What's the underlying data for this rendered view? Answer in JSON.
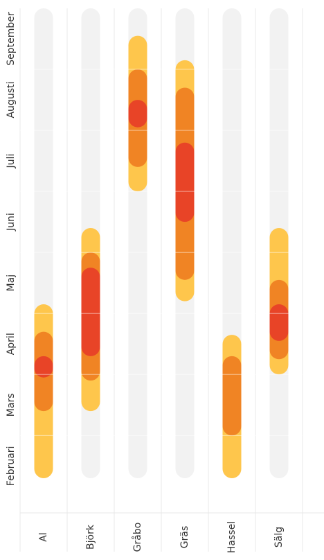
{
  "chart_data": {
    "type": "range-bar",
    "categories": [
      "Al",
      "Björk",
      "Gråbo",
      "Gräs",
      "Hassel",
      "Sälg"
    ],
    "ylim": [
      0.3,
      8
    ],
    "yticks": [
      {
        "value": 0.5,
        "label": "Februari"
      },
      {
        "value": 1.5,
        "label": "Mars"
      },
      {
        "value": 2.5,
        "label": "April"
      },
      {
        "value": 3.5,
        "label": "Maj"
      },
      {
        "value": 4.5,
        "label": "Juni"
      },
      {
        "value": 5.5,
        "label": "Juli"
      },
      {
        "value": 6.5,
        "label": "Augusti"
      },
      {
        "value": 7.5,
        "label": "September"
      }
    ],
    "grid_ticks": [
      1,
      2,
      3,
      4,
      5,
      6,
      7
    ],
    "track_color": "#f2f2f2",
    "series": [
      {
        "color": "#fec64c",
        "values": [
          [
            0.3,
            3.15
          ],
          [
            1.4,
            4.4
          ],
          [
            5.0,
            7.55
          ],
          [
            3.2,
            7.15
          ],
          [
            0.3,
            2.65
          ],
          [
            2.0,
            4.4
          ]
        ]
      },
      {
        "color": "#f08424",
        "values": [
          [
            1.4,
            2.7
          ],
          [
            1.9,
            4.0
          ],
          [
            5.4,
            7.0
          ],
          [
            3.55,
            6.7
          ],
          [
            1.0,
            2.3
          ],
          [
            2.25,
            3.55
          ]
        ]
      },
      {
        "color": "#e84427",
        "values": [
          [
            1.95,
            2.3
          ],
          [
            2.3,
            3.75
          ],
          [
            6.05,
            6.5
          ],
          [
            4.5,
            5.8
          ],
          null,
          [
            2.55,
            3.15
          ]
        ]
      }
    ]
  }
}
